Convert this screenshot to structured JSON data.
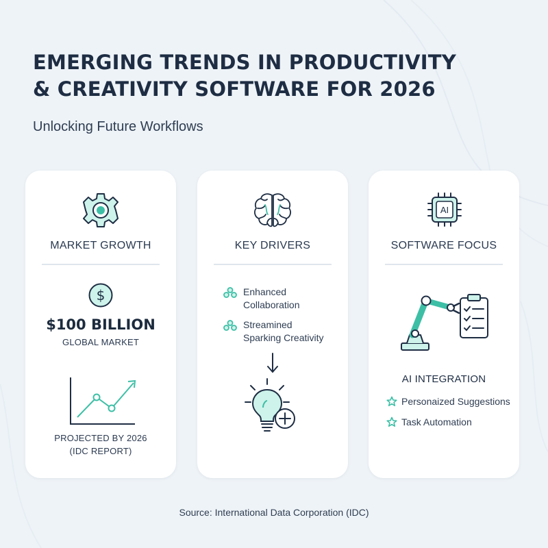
{
  "header": {
    "title_line1": "EMERGING TRENDS IN PRODUCTIVITY",
    "title_line2": "& CREATIVITY SOFTWARE FOR 2026",
    "subtitle": "Unlocking Future Workflows"
  },
  "colors": {
    "accent": "#3dbfa6",
    "accent_light": "#cdf3ea",
    "text_dark": "#1c2b3e",
    "card_bg": "#ffffff",
    "page_bg": "#eef3f7"
  },
  "cards": [
    {
      "icon": "gear-icon",
      "title": "MARKET GROWTH",
      "value_icon": "dollar-icon",
      "value": "$100 BILLION",
      "value_caption": "GLOBAL MARKET",
      "chart_icon": "growth-line-chart-icon",
      "footnote_line1": "PROJECTED BY 2026",
      "footnote_line2": "(IDC REPORT)"
    },
    {
      "icon": "brain-icon",
      "title": "KEY DRIVERS",
      "drivers": [
        {
          "icon": "network-icon",
          "line1": "Enhanced",
          "line2": "Collaboration"
        },
        {
          "icon": "network-icon",
          "line1": "Streamined",
          "line2": "Sparking Creativity"
        }
      ],
      "arrow_icon": "arrow-down-icon",
      "idea_icon": "lightbulb-plus-icon"
    },
    {
      "icon": "ai-chip-icon",
      "chip_label": "AI",
      "title": "SOFTWARE FOCUS",
      "illustration": "robot-arm-checklist-icon",
      "focus_heading": "AI INTEGRATION",
      "items": [
        {
          "icon": "star-icon",
          "label": "Personaized Suggestions"
        },
        {
          "icon": "star-icon",
          "label": "Task Automation"
        }
      ]
    }
  ],
  "footer": {
    "source": "Source: International Data Corporation (IDC)"
  }
}
